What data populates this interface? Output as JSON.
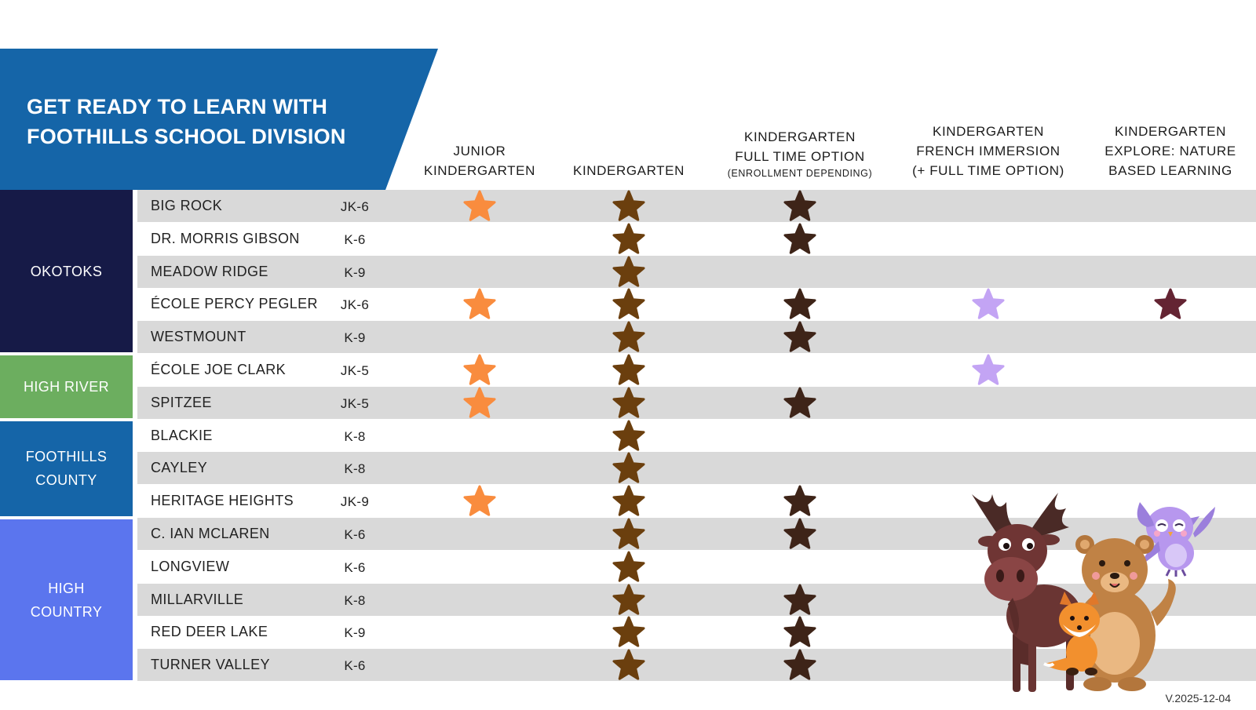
{
  "title": {
    "line1": "GET READY TO LEARN WITH",
    "line2": "FOOTHILLS SCHOOL DIVISION"
  },
  "colors": {
    "banner": "#1565a8",
    "okotoks": "#161a47",
    "high_river": "#6cae5f",
    "foothills_county": "#1565a8",
    "high_country": "#5b75ee",
    "star_junior": "#f98c3e",
    "star_kindergarten": "#6b3f0e",
    "star_fulltime": "#3e2418",
    "star_french": "#c3a4f4",
    "star_nature": "#642433"
  },
  "columns": [
    {
      "lines": [
        "JUNIOR",
        "KINDERGARTEN"
      ]
    },
    {
      "lines": [
        "KINDERGARTEN"
      ]
    },
    {
      "lines": [
        "KINDERGARTEN",
        "FULL TIME OPTION"
      ],
      "note": "(ENROLLMENT DEPENDING)"
    },
    {
      "lines": [
        "KINDERGARTEN",
        "FRENCH IMMERSION",
        "(+ FULL TIME OPTION)"
      ]
    },
    {
      "lines": [
        "KINDERGARTEN",
        "EXPLORE: NATURE",
        "BASED LEARNING"
      ]
    }
  ],
  "regions": [
    {
      "name": "OKOTOKS"
    },
    {
      "name": "HIGH RIVER"
    },
    {
      "name": "FOOTHILLS\nCOUNTY"
    },
    {
      "name": "HIGH\nCOUNTRY"
    }
  ],
  "schools": [
    {
      "name": "BIG ROCK",
      "grades": "JK-6",
      "region": "OKOTOKS",
      "programs": [
        true,
        true,
        true,
        false,
        false
      ]
    },
    {
      "name": "DR. MORRIS GIBSON",
      "grades": "K-6",
      "region": "OKOTOKS",
      "programs": [
        false,
        true,
        true,
        false,
        false
      ]
    },
    {
      "name": "MEADOW RIDGE",
      "grades": "K-9",
      "region": "OKOTOKS",
      "programs": [
        false,
        true,
        false,
        false,
        false
      ]
    },
    {
      "name": "ÉCOLE PERCY PEGLER",
      "grades": "JK-6",
      "region": "OKOTOKS",
      "programs": [
        true,
        true,
        true,
        true,
        true
      ]
    },
    {
      "name": "WESTMOUNT",
      "grades": "K-9",
      "region": "OKOTOKS",
      "programs": [
        false,
        true,
        true,
        false,
        false
      ]
    },
    {
      "name": "ÉCOLE JOE CLARK",
      "grades": "JK-5",
      "region": "HIGH RIVER",
      "programs": [
        true,
        true,
        false,
        true,
        false
      ]
    },
    {
      "name": "SPITZEE",
      "grades": "JK-5",
      "region": "HIGH RIVER",
      "programs": [
        true,
        true,
        true,
        false,
        false
      ]
    },
    {
      "name": "BLACKIE",
      "grades": "K-8",
      "region": "FOOTHILLS COUNTY",
      "programs": [
        false,
        true,
        false,
        false,
        false
      ]
    },
    {
      "name": "CAYLEY",
      "grades": "K-8",
      "region": "FOOTHILLS COUNTY",
      "programs": [
        false,
        true,
        false,
        false,
        false
      ]
    },
    {
      "name": "HERITAGE HEIGHTS",
      "grades": "JK-9",
      "region": "FOOTHILLS COUNTY",
      "programs": [
        true,
        true,
        true,
        false,
        false
      ]
    },
    {
      "name": "C. IAN MCLAREN",
      "grades": "K-6",
      "region": "HIGH COUNTRY",
      "programs": [
        false,
        true,
        true,
        false,
        false
      ]
    },
    {
      "name": "LONGVIEW",
      "grades": "K-6",
      "region": "HIGH COUNTRY",
      "programs": [
        false,
        true,
        false,
        false,
        false
      ]
    },
    {
      "name": "MILLARVILLE",
      "grades": "K-8",
      "region": "HIGH COUNTRY",
      "programs": [
        false,
        true,
        true,
        false,
        false
      ]
    },
    {
      "name": "RED DEER LAKE",
      "grades": "K-9",
      "region": "HIGH COUNTRY",
      "programs": [
        false,
        true,
        true,
        false,
        false
      ]
    },
    {
      "name": "TURNER VALLEY",
      "grades": "K-6",
      "region": "HIGH COUNTRY",
      "programs": [
        false,
        true,
        true,
        false,
        false
      ]
    }
  ],
  "mascots": [
    "moose",
    "fox",
    "bear",
    "owl"
  ],
  "version": "V.2025-12-04"
}
